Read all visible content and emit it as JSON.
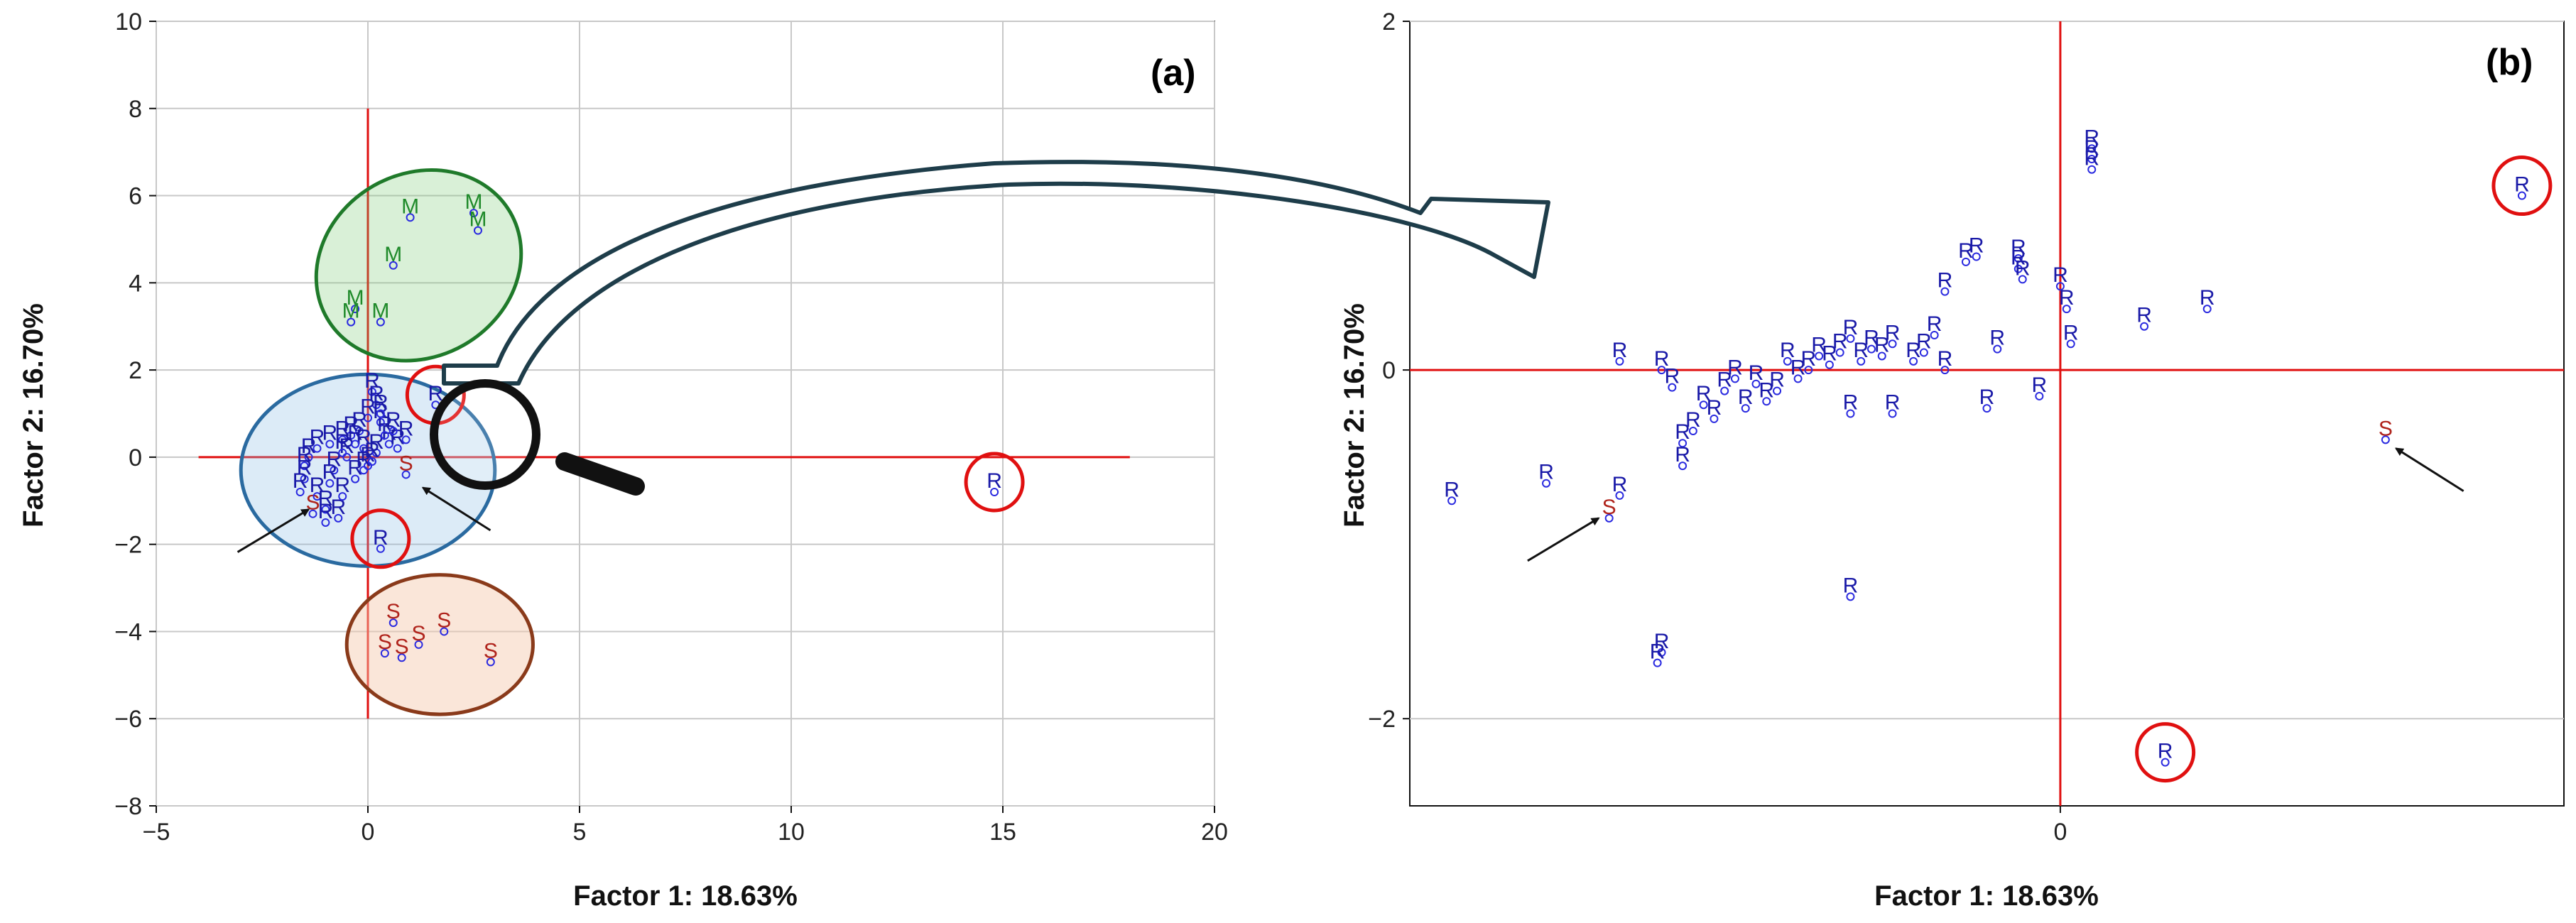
{
  "colors": {
    "R": "#1a1aa8",
    "S": "#b0241c",
    "M": "#1f8a2a",
    "marker": "#2a2ae0",
    "origin_line": "#e01010",
    "grid": "#c8c8c8",
    "highlight_circle": "#e01010",
    "ellipse_green_stroke": "#1f7a2a",
    "ellipse_blue_stroke": "#2a6aa0",
    "ellipse_brown_stroke": "#8a3a1a"
  },
  "figure": {
    "connector": "zoom-arrow",
    "magnifier_icon": "magnifier-icon"
  },
  "chart_data": [
    {
      "id": "a",
      "type": "scatter",
      "panel_label": "(a)",
      "xlabel": "Factor 1: 18.63%",
      "ylabel": "Factor 2: 16.70%",
      "xlim": [
        -5,
        20
      ],
      "ylim": [
        -8,
        10
      ],
      "xticks": [
        -5,
        0,
        5,
        10,
        15,
        20
      ],
      "yticks": [
        -8,
        -6,
        -4,
        -2,
        0,
        2,
        4,
        6,
        8,
        10
      ],
      "grid": true,
      "reference_lines": {
        "x0": true,
        "y0": true,
        "vline_range": [
          -6,
          8
        ],
        "hline_range": [
          -4,
          18
        ]
      },
      "groups": [
        {
          "name": "M",
          "label": "M",
          "ellipse": "green",
          "points": [
            [
              1.0,
              5.5
            ],
            [
              2.5,
              5.6
            ],
            [
              2.6,
              5.2
            ],
            [
              0.6,
              4.4
            ],
            [
              -0.3,
              3.4
            ],
            [
              -0.4,
              3.1
            ],
            [
              0.3,
              3.1
            ]
          ]
        },
        {
          "name": "S",
          "label": "S",
          "ellipse": "brown",
          "points": [
            [
              0.6,
              -3.8
            ],
            [
              1.8,
              -4.0
            ],
            [
              2.9,
              -4.7
            ],
            [
              1.2,
              -4.3
            ],
            [
              0.4,
              -4.5
            ],
            [
              0.8,
              -4.6
            ],
            [
              0.9,
              -0.4
            ]
          ]
        },
        {
          "name": "S_arrow",
          "label": "S",
          "arrow": true,
          "points": [
            [
              -1.3,
              -1.3
            ]
          ]
        },
        {
          "name": "R",
          "label": "R",
          "points": [
            [
              0.1,
              1.5
            ],
            [
              0.2,
              1.2
            ],
            [
              0.0,
              0.9
            ],
            [
              0.3,
              0.8
            ],
            [
              -0.2,
              0.6
            ],
            [
              -0.4,
              0.5
            ],
            [
              -0.6,
              0.4
            ],
            [
              -0.9,
              0.3
            ],
            [
              -1.2,
              0.2
            ],
            [
              -1.4,
              0.0
            ],
            [
              -1.5,
              -0.2
            ],
            [
              -1.5,
              -0.5
            ],
            [
              -1.6,
              -0.8
            ],
            [
              -1.2,
              -0.9
            ],
            [
              -1.0,
              -1.2
            ],
            [
              -1.0,
              -1.5
            ],
            [
              -0.7,
              -1.4
            ],
            [
              -0.6,
              -0.9
            ],
            [
              -0.3,
              -0.5
            ],
            [
              0.0,
              -0.2
            ],
            [
              0.2,
              0.1
            ],
            [
              0.5,
              0.3
            ],
            [
              0.7,
              0.2
            ],
            [
              0.9,
              0.4
            ],
            [
              0.4,
              0.5
            ],
            [
              -0.1,
              0.2
            ],
            [
              -0.5,
              0.0
            ],
            [
              -0.8,
              -0.3
            ],
            [
              -0.3,
              0.3
            ],
            [
              0.6,
              0.6
            ],
            [
              0.3,
              1.0
            ],
            [
              -0.9,
              -0.6
            ],
            [
              -0.1,
              -0.3
            ],
            [
              0.1,
              -0.1
            ],
            [
              -0.6,
              0.1
            ]
          ]
        },
        {
          "name": "R_outliers",
          "label": "R",
          "circled": true,
          "points": [
            [
              1.6,
              1.2
            ],
            [
              0.3,
              -2.1
            ],
            [
              14.8,
              -0.8
            ]
          ]
        }
      ],
      "arrows": [
        {
          "to": [
            -1.4,
            -1.2
          ]
        },
        {
          "to": [
            1.3,
            -0.7
          ]
        }
      ],
      "ellipses": [
        {
          "color": "green",
          "center": [
            1.2,
            4.4
          ],
          "rx": 2.5,
          "ry": 2.1,
          "angle": -30
        },
        {
          "color": "blue",
          "center": [
            0.0,
            -0.3
          ],
          "rx": 3.0,
          "ry": 2.2,
          "angle": 0
        },
        {
          "color": "brown",
          "center": [
            1.7,
            -4.3
          ],
          "rx": 2.2,
          "ry": 1.6,
          "angle": 0
        }
      ]
    },
    {
      "id": "b",
      "type": "scatter",
      "panel_label": "(b)",
      "xlabel": "Factor 1: 18.63%",
      "ylabel": "Factor 2: 16.70%",
      "xlim": [
        -3.1,
        2.4
      ],
      "ylim": [
        -2.5,
        2.0
      ],
      "xticks": [
        0
      ],
      "yticks": [
        -2,
        0,
        2
      ],
      "grid": true,
      "reference_lines": {
        "x0": true,
        "y0": true
      },
      "groups": [
        {
          "name": "R",
          "label": "R",
          "points": [
            [
              0.15,
              1.27
            ],
            [
              0.15,
              1.21
            ],
            [
              0.15,
              1.15
            ],
            [
              -0.4,
              0.65
            ],
            [
              -0.45,
              0.62
            ],
            [
              -0.2,
              0.64
            ],
            [
              -0.2,
              0.58
            ],
            [
              -0.18,
              0.52
            ],
            [
              -0.55,
              0.45
            ],
            [
              0.0,
              0.48
            ],
            [
              0.03,
              0.35
            ],
            [
              0.4,
              0.25
            ],
            [
              0.7,
              0.35
            ],
            [
              0.05,
              0.15
            ],
            [
              -0.3,
              0.12
            ],
            [
              -0.6,
              0.2
            ],
            [
              -0.65,
              0.1
            ],
            [
              -0.7,
              0.05
            ],
            [
              -0.55,
              0.0
            ],
            [
              -0.8,
              0.15
            ],
            [
              -0.85,
              0.08
            ],
            [
              -0.9,
              0.12
            ],
            [
              -0.95,
              0.05
            ],
            [
              -1.0,
              0.18
            ],
            [
              -1.05,
              0.1
            ],
            [
              -1.1,
              0.03
            ],
            [
              -1.15,
              0.08
            ],
            [
              -1.2,
              0.0
            ],
            [
              -1.25,
              -0.05
            ],
            [
              -1.3,
              0.05
            ],
            [
              -1.35,
              -0.12
            ],
            [
              -1.4,
              -0.18
            ],
            [
              -1.45,
              -0.08
            ],
            [
              -1.5,
              -0.22
            ],
            [
              -1.55,
              -0.05
            ],
            [
              -1.6,
              -0.12
            ],
            [
              -1.65,
              -0.28
            ],
            [
              -1.7,
              -0.2
            ],
            [
              -1.75,
              -0.35
            ],
            [
              -1.8,
              -0.42
            ],
            [
              -1.8,
              -0.55
            ],
            [
              -1.85,
              -0.1
            ],
            [
              -1.9,
              0.0
            ],
            [
              -1.0,
              -0.25
            ],
            [
              -0.8,
              -0.25
            ],
            [
              -0.35,
              -0.22
            ],
            [
              -0.1,
              -0.15
            ],
            [
              -1.0,
              -1.3
            ],
            [
              -2.1,
              0.05
            ],
            [
              -2.1,
              -0.72
            ],
            [
              -2.45,
              -0.65
            ],
            [
              -2.9,
              -0.75
            ],
            [
              -1.9,
              -1.62
            ],
            [
              -1.92,
              -1.68
            ]
          ]
        },
        {
          "name": "R_outliers",
          "label": "R",
          "circled": true,
          "points": [
            [
              2.2,
              1.0
            ],
            [
              0.5,
              -2.25
            ]
          ]
        },
        {
          "name": "S_arrow",
          "label": "S",
          "arrow": true,
          "points": [
            [
              -2.15,
              -0.85
            ],
            [
              1.55,
              -0.4
            ]
          ]
        }
      ],
      "arrows": [
        {
          "to": [
            -2.2,
            -0.85
          ]
        },
        {
          "to": [
            1.6,
            -0.45
          ]
        }
      ]
    }
  ]
}
